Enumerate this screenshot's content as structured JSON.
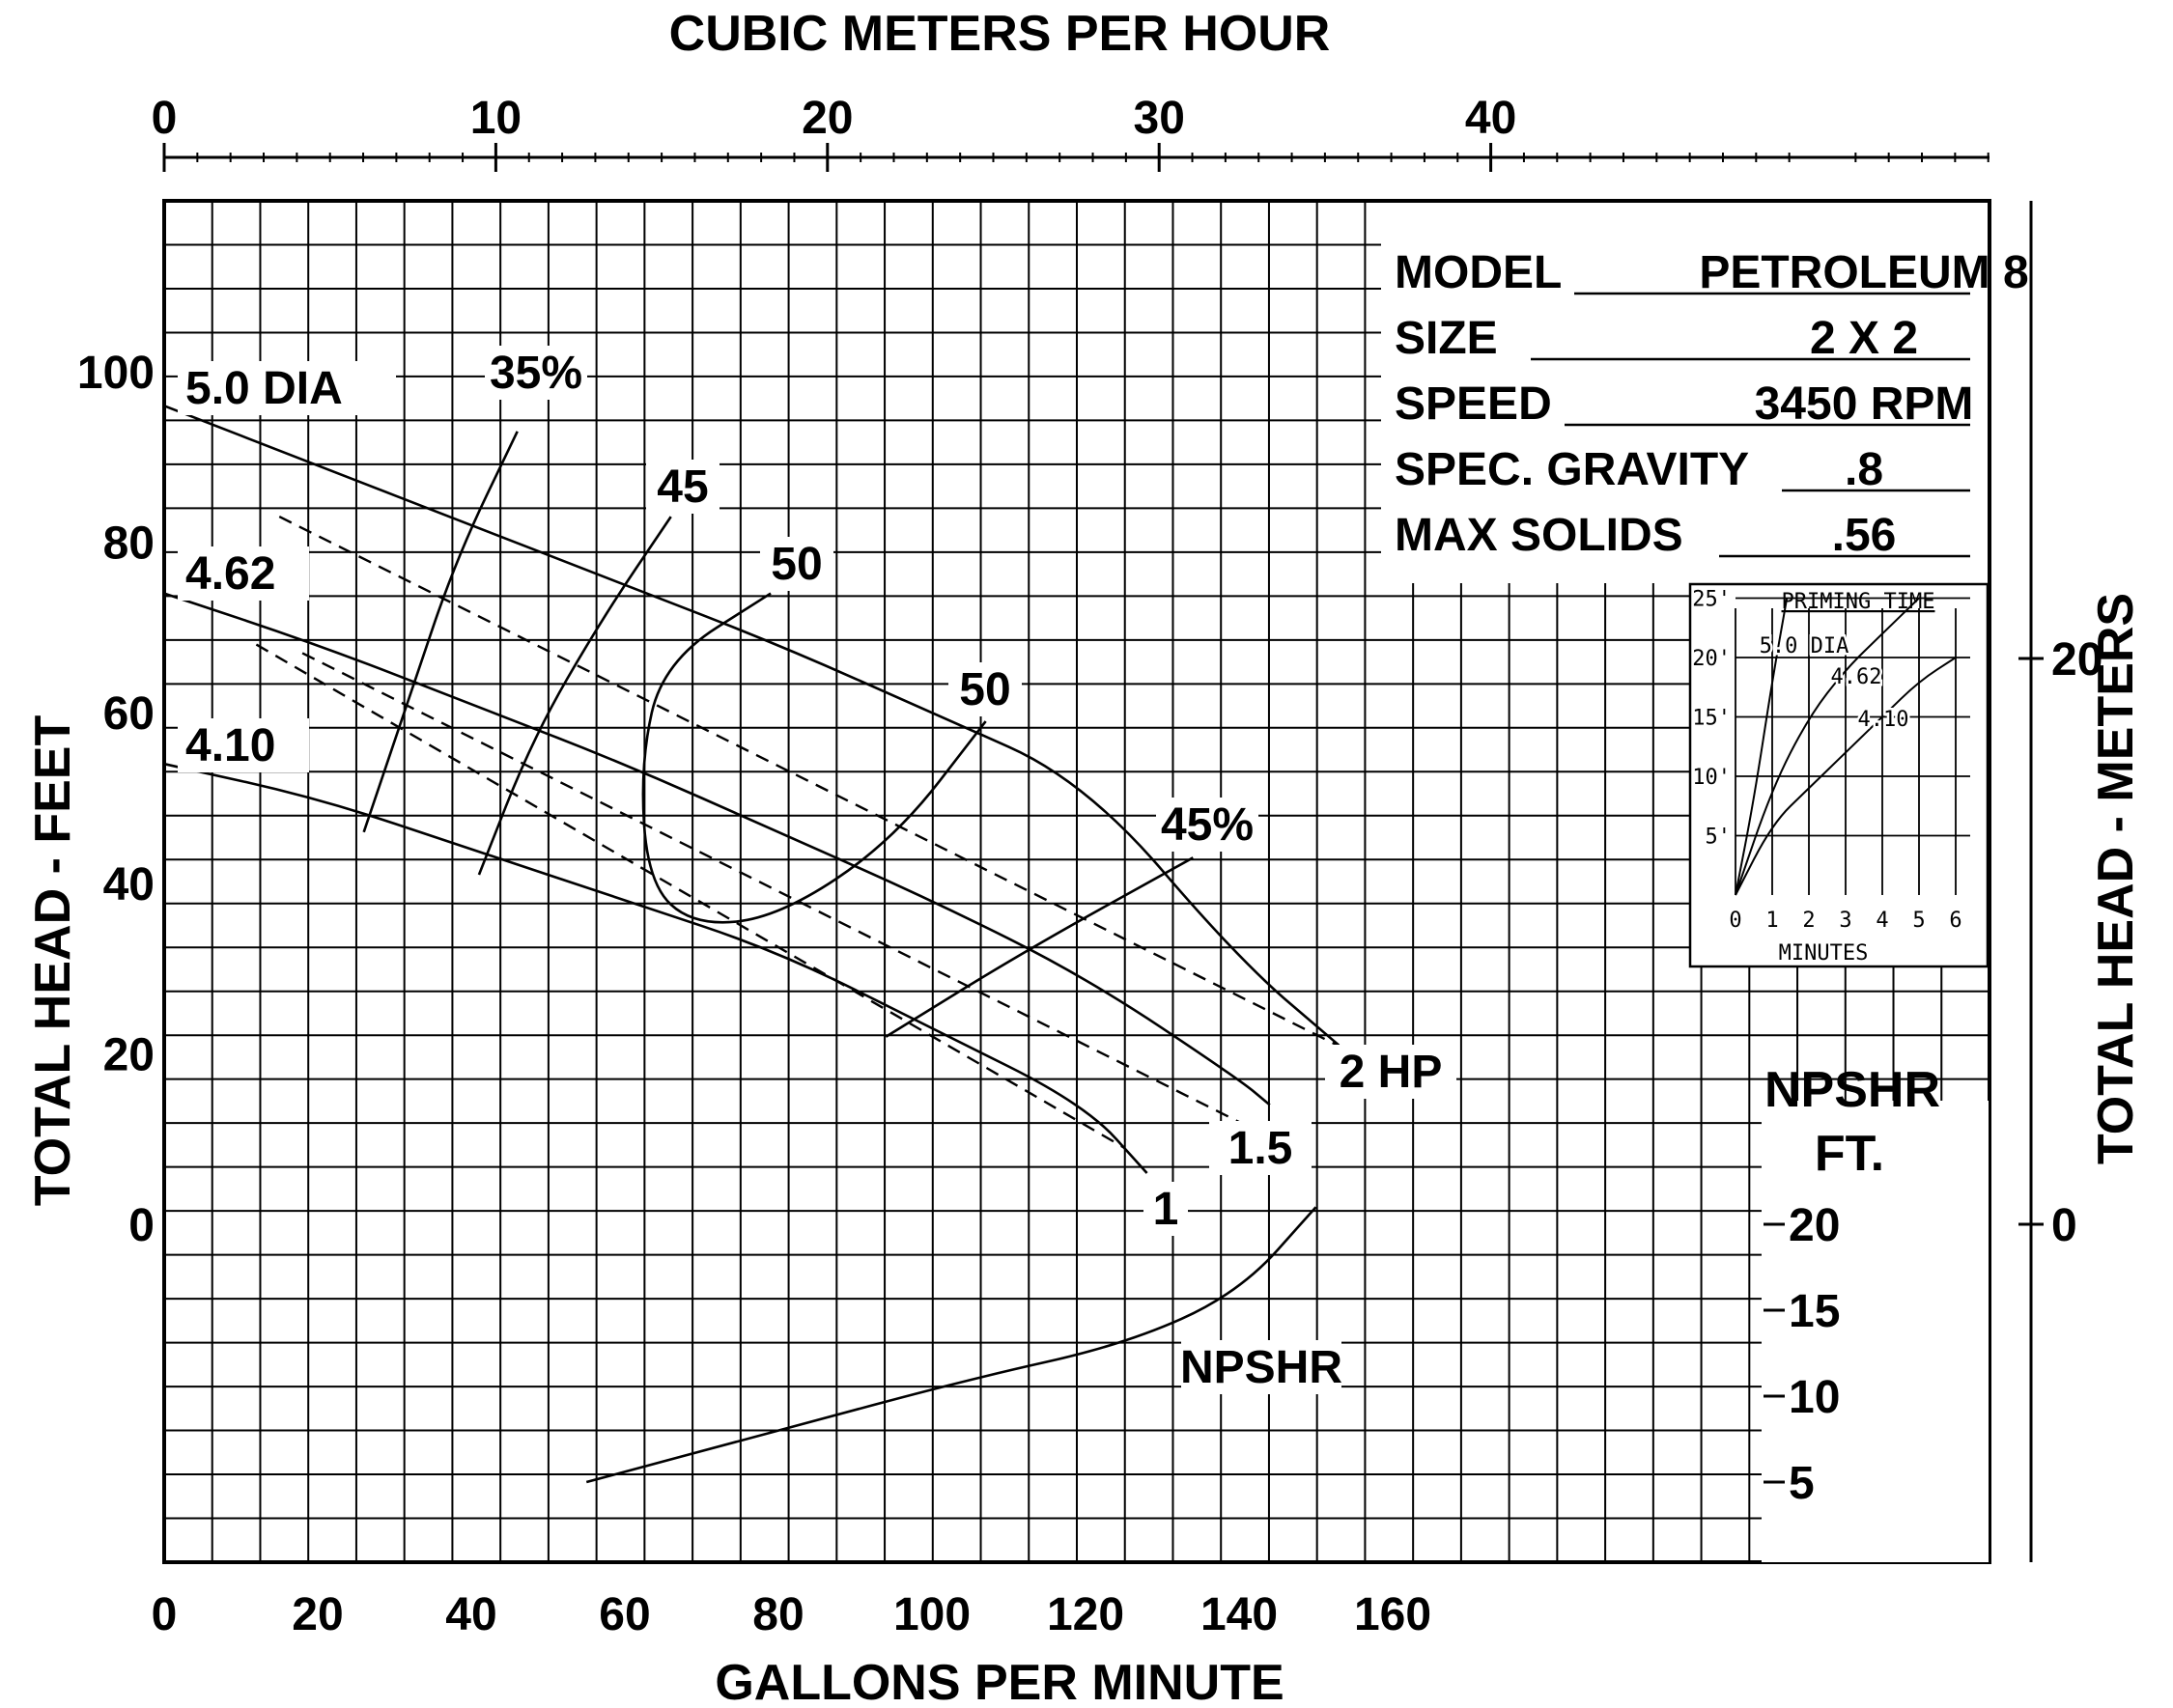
{
  "chart_data": {
    "type": "line",
    "title": "",
    "top_axis": {
      "label": "CUBIC METERS PER HOUR",
      "ticks": [
        "0",
        "10",
        "20",
        "30",
        "40"
      ],
      "values": [
        0,
        10,
        20,
        30,
        40
      ]
    },
    "bottom_axis": {
      "label": "GALLONS PER MINUTE",
      "ticks": [
        "0",
        "20",
        "40",
        "60",
        "80",
        "100",
        "120",
        "140",
        "160"
      ],
      "values": [
        0,
        20,
        40,
        60,
        80,
        100,
        120,
        140,
        160
      ]
    },
    "left_axis": {
      "label": "TOTAL HEAD - FEET",
      "ticks": [
        "0",
        "20",
        "40",
        "60",
        "80",
        "100"
      ],
      "values": [
        0,
        20,
        40,
        60,
        80,
        100
      ],
      "ylim": [
        -40,
        120
      ]
    },
    "right_axis": {
      "label": "TOTAL HEAD - METERS",
      "ticks": [
        "0",
        "20"
      ],
      "values": [
        0,
        20
      ]
    },
    "npshr_axis": {
      "label_line1": "NPSHR",
      "label_line2": "FT.",
      "ticks": [
        "20",
        "15",
        "10",
        "5"
      ],
      "values": [
        20,
        15,
        10,
        5
      ]
    },
    "grid": true,
    "spec_table": [
      {
        "label": "MODEL",
        "value": "PETROLEUM 8"
      },
      {
        "label": "SIZE",
        "value": "2 X 2"
      },
      {
        "label": "SPEED",
        "value": "3450 RPM"
      },
      {
        "label": "SPEC. GRAVITY",
        "value": ".8"
      },
      {
        "label": "MAX SOLIDS",
        "value": ".56"
      }
    ],
    "head_curves": [
      {
        "name": "5.0 DIA",
        "x": [
          0,
          20,
          40,
          60,
          80,
          100,
          120,
          140,
          153
        ],
        "y": [
          96,
          89,
          82,
          75,
          68,
          60,
          52,
          31,
          21
        ]
      },
      {
        "name": "4.62",
        "x": [
          0,
          20,
          40,
          60,
          80,
          100,
          120,
          140,
          144
        ],
        "y": [
          74,
          68,
          61,
          54,
          46,
          38,
          29,
          17,
          14
        ]
      },
      {
        "name": "4.10",
        "x": [
          0,
          20,
          40,
          60,
          80,
          100,
          120,
          128
        ],
        "y": [
          54,
          50,
          44,
          38,
          32,
          23,
          14,
          6
        ]
      }
    ],
    "power_lines": [
      {
        "name": "2 HP",
        "x": [
          15,
          155
        ],
        "y": [
          83,
          20
        ]
      },
      {
        "name": "1.5",
        "x": [
          18,
          140
        ],
        "y": [
          67,
          12
        ]
      },
      {
        "name": "1",
        "x": [
          12,
          125
        ],
        "y": [
          68,
          9
        ]
      }
    ],
    "efficiency_curves": [
      {
        "name": "35%",
        "x": [
          26,
          32,
          38,
          46
        ],
        "y": [
          46,
          62,
          78,
          93
        ]
      },
      {
        "name": "45",
        "x": [
          41,
          48,
          57,
          66
        ],
        "y": [
          41,
          57,
          71,
          83
        ]
      },
      {
        "name": "50",
        "x": [
          79,
          65,
          62,
          63,
          69,
          80,
          95,
          107
        ],
        "y": [
          74,
          66,
          54,
          40,
          35,
          36,
          45,
          59
        ]
      },
      {
        "name": "45%",
        "x": [
          94,
          112,
          134
        ],
        "y": [
          22,
          32,
          43
        ]
      }
    ],
    "npshr_curve": {
      "name": "NPSHR",
      "x": [
        55,
        80,
        105,
        125,
        140,
        150
      ],
      "y": [
        5,
        8,
        11,
        13,
        16,
        21
      ]
    },
    "curve_labels": [
      "5.0 DIA",
      "4.62",
      "4.10",
      "35%",
      "45",
      "50",
      "50",
      "45%",
      "2 HP",
      "1.5",
      "1",
      "NPSHR"
    ],
    "inset": {
      "type": "line",
      "title": "PRIMING TIME",
      "xlabel": "MINUTES",
      "x_ticks": [
        "0",
        "1",
        "2",
        "3",
        "4",
        "5",
        "6"
      ],
      "y_ticks": [
        "25'",
        "20'",
        "15'",
        "10'",
        "5'"
      ],
      "series": [
        {
          "name": "5.0 DIA",
          "x": [
            0,
            0.5,
            1,
            1.4
          ],
          "y": [
            0,
            8,
            18,
            25
          ]
        },
        {
          "name": "4.62",
          "x": [
            0,
            1,
            2,
            3,
            4,
            5
          ],
          "y": [
            0,
            9,
            15,
            19,
            22,
            25
          ]
        },
        {
          "name": "4.10",
          "x": [
            0,
            1,
            2,
            3,
            4,
            5,
            6
          ],
          "y": [
            0,
            6,
            9,
            12,
            15,
            18,
            20
          ]
        }
      ]
    }
  }
}
